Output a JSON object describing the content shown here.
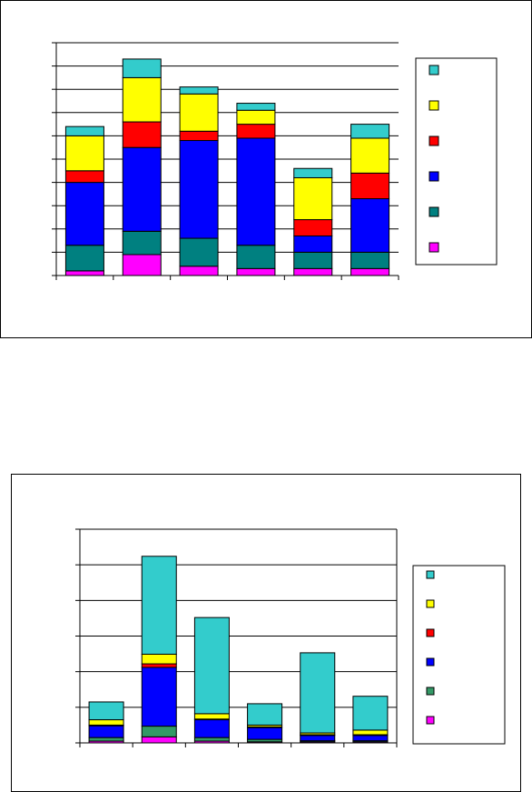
{
  "chart_data": [
    {
      "type": "bar",
      "stacked": true,
      "categories": [
        "",
        "",
        "",
        "",
        "",
        ""
      ],
      "ylim": [
        0,
        10
      ],
      "grid": true,
      "legend_placement": "right",
      "series": [
        {
          "color": "#ff00ff",
          "values": [
            0.2,
            0.9,
            0.4,
            0.3,
            0.3,
            0.3
          ]
        },
        {
          "color": "#008080",
          "values": [
            1.1,
            1.0,
            1.2,
            1.0,
            0.7,
            0.7
          ]
        },
        {
          "color": "#0000ff",
          "values": [
            2.7,
            3.6,
            4.2,
            4.6,
            0.7,
            2.3
          ]
        },
        {
          "color": "#ff0000",
          "values": [
            0.5,
            1.1,
            0.4,
            0.6,
            0.7,
            1.1
          ]
        },
        {
          "color": "#ffff00",
          "values": [
            1.5,
            1.9,
            1.6,
            0.6,
            1.8,
            1.5
          ]
        },
        {
          "color": "#33cccc",
          "values": [
            0.4,
            0.8,
            0.3,
            0.3,
            0.4,
            0.6
          ]
        }
      ]
    },
    {
      "type": "bar",
      "stacked": true,
      "categories": [
        "",
        "",
        "",
        "",
        "",
        ""
      ],
      "ylim": [
        0,
        6
      ],
      "grid": true,
      "legend_placement": "right",
      "series": [
        {
          "color": "#ff00ff",
          "values": [
            0.05,
            0.17,
            0.05,
            0.03,
            0.03,
            0.03
          ]
        },
        {
          "color": "#339966",
          "values": [
            0.1,
            0.3,
            0.1,
            0.07,
            0.03,
            0.03
          ]
        },
        {
          "color": "#0000ff",
          "values": [
            0.33,
            1.65,
            0.5,
            0.33,
            0.15,
            0.15
          ]
        },
        {
          "color": "#ff0000",
          "values": [
            0.02,
            0.1,
            0.02,
            0.02,
            0.02,
            0.02
          ]
        },
        {
          "color": "#ffff00",
          "values": [
            0.15,
            0.27,
            0.15,
            0.05,
            0.05,
            0.13
          ]
        },
        {
          "color": "#33cccc",
          "values": [
            0.5,
            2.75,
            2.7,
            0.6,
            2.25,
            0.95
          ]
        }
      ]
    }
  ]
}
